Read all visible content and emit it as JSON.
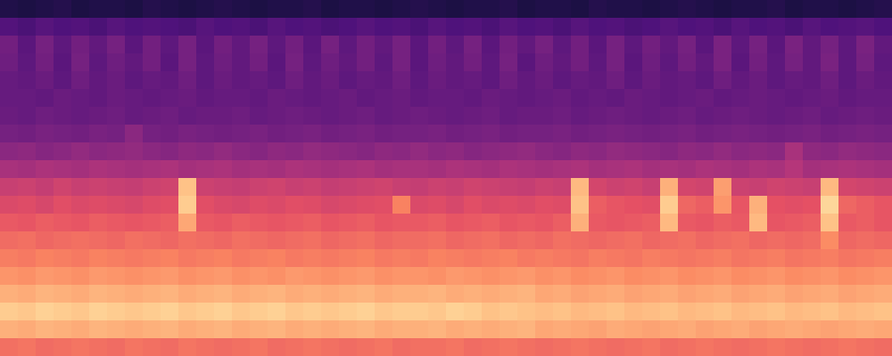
{
  "chart_data": {
    "type": "heatmap",
    "tick_labels": false,
    "zlim": [
      0,
      100
    ],
    "cells": [
      [
        14,
        13,
        14,
        15,
        13,
        14,
        14,
        13,
        15,
        14,
        13,
        14,
        15,
        14,
        13,
        14,
        14,
        15,
        13,
        14,
        14,
        13,
        14,
        15,
        14,
        13,
        14,
        14,
        15,
        13,
        14,
        14,
        13,
        15,
        14,
        14,
        13,
        14,
        15,
        14,
        13,
        14,
        14,
        15,
        13,
        14,
        14,
        13,
        14,
        15
      ],
      [
        26,
        24,
        27,
        25,
        26,
        24,
        27,
        25,
        26,
        25,
        24,
        27,
        25,
        26,
        24,
        27,
        25,
        26,
        24,
        25,
        27,
        25,
        26,
        24,
        27,
        25,
        26,
        24,
        27,
        25,
        26,
        24,
        27,
        25,
        26,
        24,
        25,
        27,
        25,
        26,
        24,
        27,
        25,
        26,
        24,
        27,
        25,
        26,
        27,
        25
      ],
      [
        34,
        28,
        35,
        29,
        34,
        30,
        35,
        28,
        34,
        29,
        35,
        28,
        34,
        30,
        35,
        29,
        34,
        28,
        35,
        29,
        34,
        30,
        35,
        28,
        34,
        29,
        35,
        28,
        34,
        30,
        35,
        29,
        34,
        28,
        35,
        29,
        34,
        30,
        35,
        28,
        36,
        29,
        35,
        28,
        36,
        30,
        35,
        29,
        36,
        30
      ],
      [
        33,
        29,
        34,
        28,
        35,
        29,
        33,
        30,
        34,
        28,
        35,
        29,
        33,
        30,
        34,
        28,
        35,
        29,
        33,
        30,
        34,
        29,
        35,
        28,
        33,
        30,
        34,
        29,
        35,
        28,
        33,
        30,
        34,
        29,
        35,
        28,
        33,
        29,
        34,
        30,
        36,
        28,
        34,
        29,
        35,
        30,
        36,
        29,
        35,
        29
      ],
      [
        31,
        30,
        32,
        29,
        33,
        30,
        32,
        29,
        31,
        30,
        33,
        29,
        32,
        30,
        31,
        29,
        33,
        30,
        32,
        29,
        31,
        30,
        33,
        29,
        32,
        30,
        31,
        29,
        33,
        30,
        32,
        29,
        31,
        30,
        33,
        29,
        32,
        30,
        31,
        29,
        33,
        30,
        32,
        29,
        31,
        30,
        33,
        29,
        32,
        30
      ],
      [
        31,
        31,
        30,
        32,
        31,
        30,
        32,
        31,
        30,
        31,
        32,
        30,
        31,
        31,
        30,
        32,
        31,
        30,
        31,
        32,
        30,
        31,
        32,
        30,
        31,
        31,
        30,
        32,
        31,
        30,
        31,
        32,
        30,
        31,
        30,
        32,
        31,
        30,
        31,
        32,
        30,
        31,
        32,
        31,
        30,
        31,
        32,
        30,
        31,
        31
      ],
      [
        32,
        31,
        33,
        32,
        31,
        32,
        33,
        31,
        32,
        33,
        31,
        32,
        32,
        33,
        31,
        32,
        33,
        32,
        31,
        32,
        33,
        31,
        32,
        33,
        32,
        31,
        32,
        33,
        31,
        32,
        32,
        33,
        31,
        32,
        33,
        32,
        31,
        32,
        33,
        31,
        32,
        33,
        32,
        31,
        32,
        33,
        31,
        32,
        33,
        32
      ],
      [
        35,
        34,
        36,
        35,
        34,
        36,
        35,
        40,
        35,
        34,
        36,
        35,
        34,
        35,
        36,
        34,
        35,
        36,
        34,
        35,
        36,
        34,
        35,
        35,
        36,
        34,
        35,
        36,
        34,
        35,
        35,
        36,
        34,
        35,
        36,
        35,
        34,
        35,
        36,
        34,
        35,
        36,
        35,
        34,
        35,
        36,
        34,
        35,
        36,
        35
      ],
      [
        40,
        41,
        39,
        40,
        42,
        40,
        41,
        42,
        40,
        39,
        41,
        40,
        42,
        40,
        39,
        41,
        40,
        42,
        41,
        40,
        39,
        41,
        40,
        42,
        40,
        41,
        39,
        40,
        41,
        42,
        40,
        39,
        41,
        40,
        42,
        41,
        40,
        39,
        41,
        40,
        42,
        40,
        41,
        40,
        47,
        41,
        40,
        42,
        41,
        40
      ],
      [
        47,
        46,
        48,
        47,
        46,
        48,
        47,
        46,
        47,
        48,
        46,
        47,
        48,
        46,
        47,
        46,
        48,
        47,
        46,
        47,
        48,
        46,
        47,
        47,
        46,
        48,
        47,
        46,
        48,
        47,
        46,
        47,
        48,
        46,
        47,
        48,
        46,
        47,
        46,
        48,
        47,
        46,
        48,
        47,
        50,
        46,
        47,
        48,
        47,
        46
      ],
      [
        55,
        56,
        54,
        57,
        55,
        56,
        55,
        54,
        56,
        57,
        88,
        56,
        55,
        54,
        56,
        57,
        55,
        56,
        54,
        55,
        56,
        57,
        55,
        54,
        56,
        55,
        57,
        56,
        55,
        54,
        56,
        55,
        86,
        58,
        56,
        57,
        55,
        84,
        58,
        57,
        80,
        56,
        55,
        57,
        56,
        55,
        86,
        58,
        57,
        56
      ],
      [
        60,
        61,
        59,
        62,
        60,
        61,
        60,
        59,
        61,
        62,
        90,
        62,
        60,
        59,
        61,
        60,
        62,
        61,
        59,
        60,
        61,
        62,
        74,
        60,
        61,
        59,
        62,
        60,
        61,
        60,
        62,
        61,
        88,
        66,
        64,
        63,
        62,
        90,
        68,
        66,
        78,
        64,
        84,
        63,
        62,
        63,
        92,
        68,
        66,
        64
      ],
      [
        65,
        64,
        66,
        65,
        64,
        66,
        65,
        64,
        65,
        66,
        82,
        65,
        64,
        66,
        65,
        64,
        65,
        66,
        64,
        65,
        66,
        64,
        65,
        65,
        66,
        64,
        65,
        66,
        64,
        65,
        64,
        66,
        84,
        65,
        64,
        65,
        66,
        86,
        65,
        64,
        66,
        65,
        86,
        64,
        65,
        66,
        88,
        65,
        66,
        64
      ],
      [
        69,
        70,
        68,
        69,
        70,
        69,
        68,
        70,
        69,
        68,
        70,
        69,
        68,
        70,
        69,
        68,
        69,
        70,
        68,
        69,
        70,
        68,
        69,
        69,
        70,
        68,
        69,
        70,
        68,
        69,
        68,
        70,
        69,
        68,
        69,
        70,
        68,
        69,
        70,
        68,
        69,
        70,
        68,
        69,
        68,
        69,
        76,
        68,
        69,
        68
      ],
      [
        73,
        72,
        74,
        73,
        72,
        74,
        73,
        72,
        73,
        74,
        72,
        73,
        74,
        72,
        73,
        74,
        72,
        73,
        72,
        73,
        74,
        72,
        73,
        72,
        74,
        73,
        72,
        73,
        74,
        72,
        73,
        72,
        71,
        73,
        72,
        71,
        73,
        72,
        71,
        72,
        73,
        71,
        72,
        73,
        71,
        72,
        73,
        71,
        72,
        73
      ],
      [
        78,
        77,
        79,
        78,
        77,
        79,
        78,
        77,
        78,
        79,
        77,
        78,
        79,
        77,
        78,
        77,
        79,
        78,
        77,
        78,
        79,
        77,
        78,
        78,
        77,
        79,
        78,
        77,
        78,
        79,
        77,
        78,
        76,
        77,
        78,
        76,
        77,
        78,
        76,
        77,
        78,
        76,
        77,
        78,
        76,
        77,
        78,
        76,
        77,
        78
      ],
      [
        84,
        83,
        85,
        84,
        83,
        85,
        84,
        83,
        84,
        85,
        83,
        84,
        85,
        83,
        84,
        85,
        83,
        84,
        83,
        84,
        85,
        83,
        84,
        84,
        85,
        83,
        84,
        83,
        84,
        85,
        82,
        83,
        81,
        82,
        83,
        81,
        82,
        83,
        81,
        82,
        83,
        81,
        82,
        83,
        81,
        82,
        83,
        81,
        82,
        83
      ],
      [
        90,
        89,
        91,
        90,
        89,
        91,
        90,
        89,
        90,
        91,
        89,
        90,
        91,
        89,
        90,
        91,
        89,
        90,
        89,
        90,
        91,
        89,
        90,
        90,
        89,
        91,
        90,
        88,
        89,
        88,
        87,
        88,
        86,
        87,
        88,
        86,
        87,
        88,
        86,
        87,
        88,
        86,
        87,
        88,
        86,
        87,
        88,
        86,
        87,
        88
      ],
      [
        84,
        83,
        85,
        84,
        83,
        85,
        84,
        83,
        84,
        85,
        83,
        84,
        85,
        83,
        84,
        85,
        83,
        84,
        83,
        84,
        85,
        83,
        84,
        84,
        85,
        83,
        84,
        83,
        84,
        85,
        82,
        83,
        82,
        81,
        83,
        82,
        81,
        82,
        83,
        81,
        82,
        83,
        81,
        82,
        83,
        82,
        81,
        82,
        83,
        82
      ],
      [
        70,
        71,
        69,
        70,
        71,
        70,
        69,
        71,
        70,
        69,
        71,
        70,
        69,
        70,
        71,
        69,
        70,
        71,
        70,
        69,
        70,
        71,
        69,
        70,
        70,
        71,
        69,
        70,
        71,
        70,
        69,
        70,
        71,
        70,
        69,
        70,
        71,
        69,
        70,
        71,
        70,
        69,
        70,
        71,
        70,
        69,
        70,
        71,
        70,
        69
      ]
    ]
  }
}
